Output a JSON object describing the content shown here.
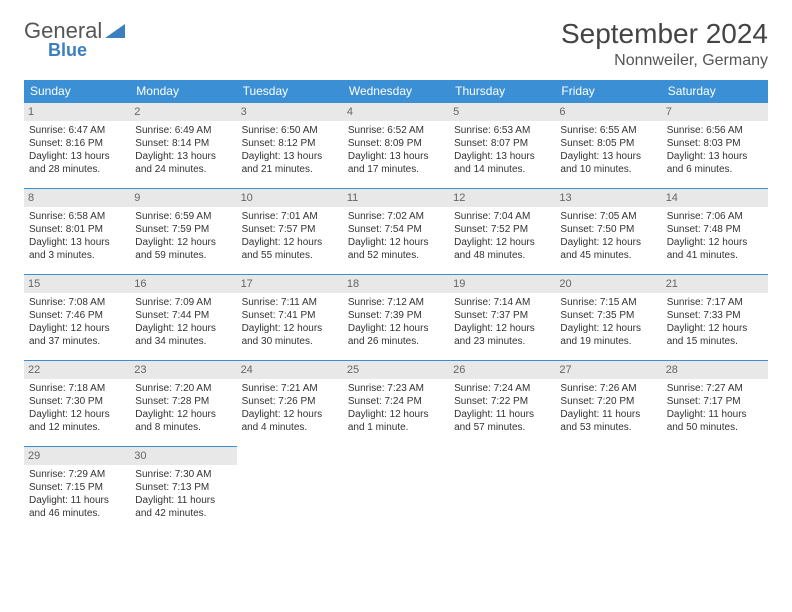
{
  "logo": {
    "text1": "General",
    "text2": "Blue"
  },
  "title": "September 2024",
  "location": "Nonnweiler, Germany",
  "colors": {
    "header_bg": "#3b8fd4",
    "header_fg": "#ffffff",
    "daynum_bg": "#e8e8e8",
    "daynum_fg": "#666666",
    "border": "#3b8fd4",
    "text": "#333333",
    "logo_gray": "#555555",
    "logo_blue": "#3b7fbf"
  },
  "dayHeaders": [
    "Sunday",
    "Monday",
    "Tuesday",
    "Wednesday",
    "Thursday",
    "Friday",
    "Saturday"
  ],
  "weeks": [
    [
      {
        "n": "1",
        "sr": "Sunrise: 6:47 AM",
        "ss": "Sunset: 8:16 PM",
        "dl": "Daylight: 13 hours and 28 minutes."
      },
      {
        "n": "2",
        "sr": "Sunrise: 6:49 AM",
        "ss": "Sunset: 8:14 PM",
        "dl": "Daylight: 13 hours and 24 minutes."
      },
      {
        "n": "3",
        "sr": "Sunrise: 6:50 AM",
        "ss": "Sunset: 8:12 PM",
        "dl": "Daylight: 13 hours and 21 minutes."
      },
      {
        "n": "4",
        "sr": "Sunrise: 6:52 AM",
        "ss": "Sunset: 8:09 PM",
        "dl": "Daylight: 13 hours and 17 minutes."
      },
      {
        "n": "5",
        "sr": "Sunrise: 6:53 AM",
        "ss": "Sunset: 8:07 PM",
        "dl": "Daylight: 13 hours and 14 minutes."
      },
      {
        "n": "6",
        "sr": "Sunrise: 6:55 AM",
        "ss": "Sunset: 8:05 PM",
        "dl": "Daylight: 13 hours and 10 minutes."
      },
      {
        "n": "7",
        "sr": "Sunrise: 6:56 AM",
        "ss": "Sunset: 8:03 PM",
        "dl": "Daylight: 13 hours and 6 minutes."
      }
    ],
    [
      {
        "n": "8",
        "sr": "Sunrise: 6:58 AM",
        "ss": "Sunset: 8:01 PM",
        "dl": "Daylight: 13 hours and 3 minutes."
      },
      {
        "n": "9",
        "sr": "Sunrise: 6:59 AM",
        "ss": "Sunset: 7:59 PM",
        "dl": "Daylight: 12 hours and 59 minutes."
      },
      {
        "n": "10",
        "sr": "Sunrise: 7:01 AM",
        "ss": "Sunset: 7:57 PM",
        "dl": "Daylight: 12 hours and 55 minutes."
      },
      {
        "n": "11",
        "sr": "Sunrise: 7:02 AM",
        "ss": "Sunset: 7:54 PM",
        "dl": "Daylight: 12 hours and 52 minutes."
      },
      {
        "n": "12",
        "sr": "Sunrise: 7:04 AM",
        "ss": "Sunset: 7:52 PM",
        "dl": "Daylight: 12 hours and 48 minutes."
      },
      {
        "n": "13",
        "sr": "Sunrise: 7:05 AM",
        "ss": "Sunset: 7:50 PM",
        "dl": "Daylight: 12 hours and 45 minutes."
      },
      {
        "n": "14",
        "sr": "Sunrise: 7:06 AM",
        "ss": "Sunset: 7:48 PM",
        "dl": "Daylight: 12 hours and 41 minutes."
      }
    ],
    [
      {
        "n": "15",
        "sr": "Sunrise: 7:08 AM",
        "ss": "Sunset: 7:46 PM",
        "dl": "Daylight: 12 hours and 37 minutes."
      },
      {
        "n": "16",
        "sr": "Sunrise: 7:09 AM",
        "ss": "Sunset: 7:44 PM",
        "dl": "Daylight: 12 hours and 34 minutes."
      },
      {
        "n": "17",
        "sr": "Sunrise: 7:11 AM",
        "ss": "Sunset: 7:41 PM",
        "dl": "Daylight: 12 hours and 30 minutes."
      },
      {
        "n": "18",
        "sr": "Sunrise: 7:12 AM",
        "ss": "Sunset: 7:39 PM",
        "dl": "Daylight: 12 hours and 26 minutes."
      },
      {
        "n": "19",
        "sr": "Sunrise: 7:14 AM",
        "ss": "Sunset: 7:37 PM",
        "dl": "Daylight: 12 hours and 23 minutes."
      },
      {
        "n": "20",
        "sr": "Sunrise: 7:15 AM",
        "ss": "Sunset: 7:35 PM",
        "dl": "Daylight: 12 hours and 19 minutes."
      },
      {
        "n": "21",
        "sr": "Sunrise: 7:17 AM",
        "ss": "Sunset: 7:33 PM",
        "dl": "Daylight: 12 hours and 15 minutes."
      }
    ],
    [
      {
        "n": "22",
        "sr": "Sunrise: 7:18 AM",
        "ss": "Sunset: 7:30 PM",
        "dl": "Daylight: 12 hours and 12 minutes."
      },
      {
        "n": "23",
        "sr": "Sunrise: 7:20 AM",
        "ss": "Sunset: 7:28 PM",
        "dl": "Daylight: 12 hours and 8 minutes."
      },
      {
        "n": "24",
        "sr": "Sunrise: 7:21 AM",
        "ss": "Sunset: 7:26 PM",
        "dl": "Daylight: 12 hours and 4 minutes."
      },
      {
        "n": "25",
        "sr": "Sunrise: 7:23 AM",
        "ss": "Sunset: 7:24 PM",
        "dl": "Daylight: 12 hours and 1 minute."
      },
      {
        "n": "26",
        "sr": "Sunrise: 7:24 AM",
        "ss": "Sunset: 7:22 PM",
        "dl": "Daylight: 11 hours and 57 minutes."
      },
      {
        "n": "27",
        "sr": "Sunrise: 7:26 AM",
        "ss": "Sunset: 7:20 PM",
        "dl": "Daylight: 11 hours and 53 minutes."
      },
      {
        "n": "28",
        "sr": "Sunrise: 7:27 AM",
        "ss": "Sunset: 7:17 PM",
        "dl": "Daylight: 11 hours and 50 minutes."
      }
    ],
    [
      {
        "n": "29",
        "sr": "Sunrise: 7:29 AM",
        "ss": "Sunset: 7:15 PM",
        "dl": "Daylight: 11 hours and 46 minutes."
      },
      {
        "n": "30",
        "sr": "Sunrise: 7:30 AM",
        "ss": "Sunset: 7:13 PM",
        "dl": "Daylight: 11 hours and 42 minutes."
      },
      {
        "empty": true
      },
      {
        "empty": true
      },
      {
        "empty": true
      },
      {
        "empty": true
      },
      {
        "empty": true
      }
    ]
  ]
}
